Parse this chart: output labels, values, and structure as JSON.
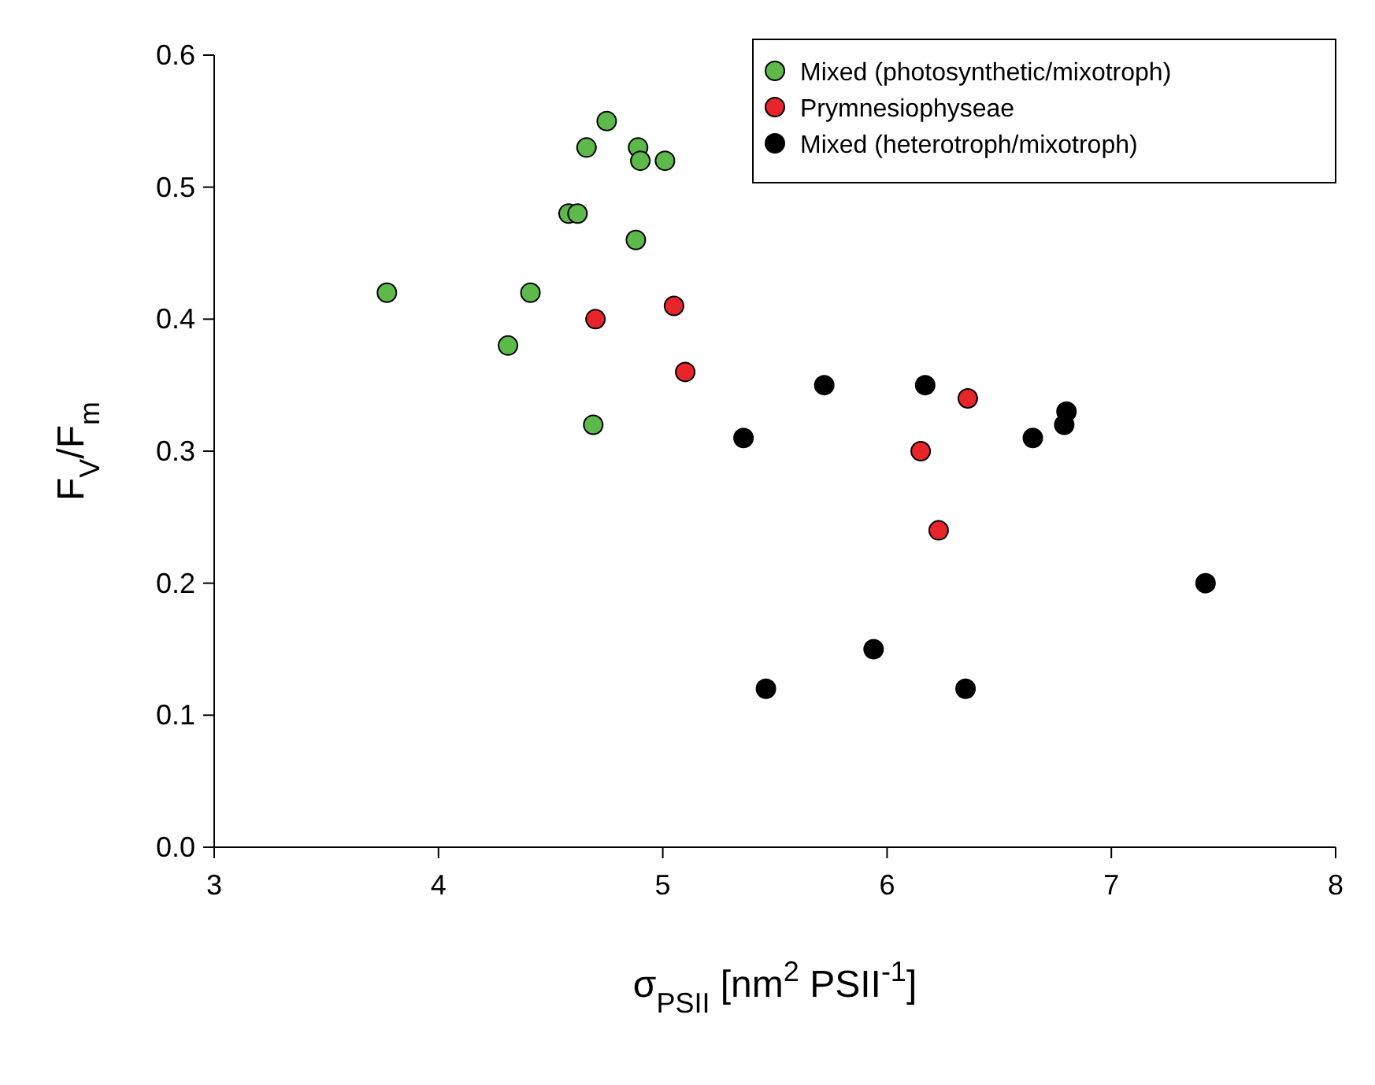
{
  "chart_data": {
    "type": "scatter",
    "xlabel": "σ$_{PSII}$ [nm$^{2}$ PSII$^{-1}$]",
    "ylabel": "F$_{V}$/F$_{m}$",
    "xlim": [
      3,
      8
    ],
    "xticks": [
      3,
      4,
      5,
      6,
      7,
      8
    ],
    "ylim": [
      0,
      0.6
    ],
    "yticks": [
      {
        "value": 0,
        "label": "0.0"
      },
      0.1,
      0.2,
      0.3,
      0.4,
      0.5,
      0.6
    ],
    "grid": false,
    "legend": "top right",
    "marker": "circle",
    "series": [
      {
        "name": "Mixed (photosynthetic/mixotroph)",
        "color": "#5cb94a",
        "x": [
          3.77,
          4.31,
          4.41,
          4.58,
          4.62,
          4.66,
          4.75,
          4.89,
          4.9,
          5.01,
          4.88,
          4.69
        ],
        "values": [
          0.42,
          0.38,
          0.42,
          0.48,
          0.48,
          0.53,
          0.55,
          0.53,
          0.52,
          0.52,
          0.46,
          0.32
        ]
      },
      {
        "name": "Prymnesiophyseae",
        "color": "#e8252a",
        "x": [
          4.7,
          5.05,
          5.1,
          6.36,
          6.15,
          6.23
        ],
        "values": [
          0.4,
          0.41,
          0.36,
          0.34,
          0.3,
          0.24
        ]
      },
      {
        "name": "Mixed (heterotroph/mixotroph)",
        "color": "#000000",
        "x": [
          5.36,
          5.72,
          6.17,
          6.65,
          6.79,
          6.8,
          7.42,
          5.94,
          5.46,
          6.35
        ],
        "values": [
          0.31,
          0.35,
          0.35,
          0.31,
          0.32,
          0.33,
          0.2,
          0.15,
          0.12,
          0.12
        ]
      }
    ]
  }
}
